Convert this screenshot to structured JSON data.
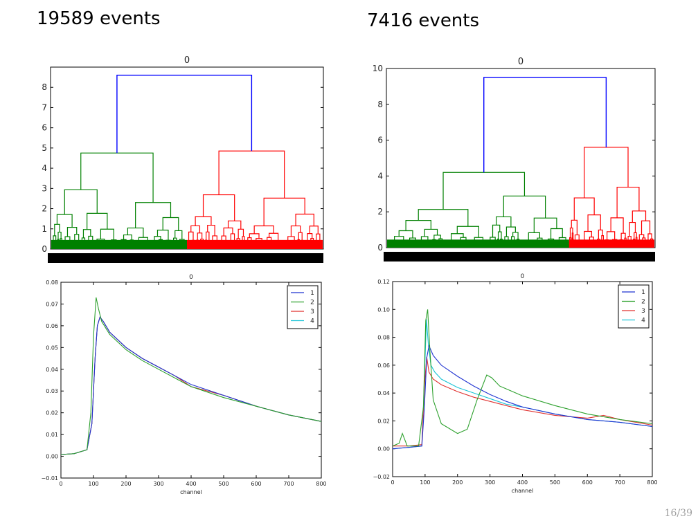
{
  "slide": {
    "left_title": "19589 events",
    "right_title": "7416 events",
    "page_number": "16/39"
  },
  "colors": {
    "cluster_link": "#0000ff",
    "cluster_a": "#008000",
    "cluster_b": "#ff0000",
    "series_1": "#1f33d1",
    "series_2": "#2ca02c",
    "series_3": "#e0312f",
    "series_4": "#19c3d6"
  },
  "chart_data": [
    {
      "id": "dendro-left",
      "type": "dendrogram",
      "title": "0",
      "ylim": [
        0,
        9
      ],
      "yticks": [
        "0",
        "1",
        "2",
        "3",
        "4",
        "5",
        "6",
        "7",
        "8"
      ],
      "root_height": 8.6,
      "left_cluster": {
        "color": "green",
        "height": 4.75,
        "fraction": 0.5
      },
      "right_cluster": {
        "color": "red",
        "height": 4.85,
        "fraction": 0.5
      },
      "xlabel": ""
    },
    {
      "id": "dendro-right",
      "type": "dendrogram",
      "title": "0",
      "ylim": [
        0,
        10
      ],
      "yticks": [
        "0",
        "2",
        "4",
        "6",
        "8",
        "10"
      ],
      "root_height": 9.5,
      "left_cluster": {
        "color": "green",
        "height": 4.2,
        "fraction": 0.68
      },
      "right_cluster": {
        "color": "red",
        "height": 5.6,
        "fraction": 0.32
      },
      "xlabel": ""
    },
    {
      "id": "lines-left",
      "type": "line",
      "title": "0",
      "xlabel": "channel",
      "ylabel": "",
      "xlim": [
        0,
        800
      ],
      "ylim": [
        -0.01,
        0.08
      ],
      "xticks": [
        "0",
        "100",
        "200",
        "300",
        "400",
        "500",
        "600",
        "700",
        "800"
      ],
      "yticks": [
        "−0.01",
        "0.00",
        "0.01",
        "0.02",
        "0.03",
        "0.04",
        "0.05",
        "0.06",
        "0.07",
        "0.08"
      ],
      "legend": [
        "1",
        "2",
        "3",
        "4"
      ],
      "legend_position": "top-right",
      "series": [
        {
          "name": "1",
          "x": [
            0,
            40,
            80,
            95,
            105,
            112,
            120,
            130,
            150,
            200,
            250,
            300,
            350,
            400,
            500,
            600,
            700,
            800
          ],
          "y": [
            0.0008,
            0.0012,
            0.003,
            0.015,
            0.045,
            0.06,
            0.064,
            0.062,
            0.057,
            0.05,
            0.045,
            0.041,
            0.037,
            0.033,
            0.028,
            0.023,
            0.019,
            0.016
          ]
        },
        {
          "name": "2",
          "x": [
            0,
            40,
            80,
            92,
            100,
            108,
            115,
            125,
            150,
            200,
            250,
            300,
            350,
            400,
            500,
            600,
            700,
            800
          ],
          "y": [
            0.0008,
            0.0012,
            0.003,
            0.02,
            0.055,
            0.073,
            0.068,
            0.062,
            0.056,
            0.049,
            0.044,
            0.04,
            0.036,
            0.032,
            0.027,
            0.023,
            0.019,
            0.016
          ]
        },
        {
          "name": "3",
          "x": [
            0,
            40,
            80,
            95,
            105,
            112,
            120,
            130,
            150,
            200,
            250,
            300,
            350,
            400,
            500,
            600,
            700,
            800
          ],
          "y": [
            0.0008,
            0.0012,
            0.003,
            0.015,
            0.045,
            0.06,
            0.064,
            0.062,
            0.057,
            0.05,
            0.045,
            0.041,
            0.037,
            0.032,
            0.028,
            0.023,
            0.019,
            0.016
          ]
        },
        {
          "name": "4",
          "x": [
            0,
            40,
            80,
            95,
            105,
            112,
            120,
            130,
            150,
            200,
            250,
            300,
            350,
            400,
            500,
            600,
            700,
            800
          ],
          "y": [
            0.0008,
            0.0012,
            0.003,
            0.015,
            0.045,
            0.06,
            0.064,
            0.062,
            0.057,
            0.05,
            0.045,
            0.041,
            0.037,
            0.032,
            0.028,
            0.023,
            0.019,
            0.016
          ]
        }
      ]
    },
    {
      "id": "lines-right",
      "type": "line",
      "title": "0",
      "xlabel": "channel",
      "ylabel": "",
      "xlim": [
        0,
        800
      ],
      "ylim": [
        -0.02,
        0.12
      ],
      "xticks": [
        "0",
        "100",
        "200",
        "300",
        "400",
        "500",
        "600",
        "700",
        "800"
      ],
      "yticks": [
        "−0.02",
        "0.00",
        "0.02",
        "0.04",
        "0.06",
        "0.08",
        "0.10",
        "0.12"
      ],
      "legend": [
        "1",
        "2",
        "3",
        "4"
      ],
      "legend_position": "top-right",
      "series": [
        {
          "name": "1",
          "x": [
            0,
            50,
            90,
            98,
            105,
            112,
            125,
            150,
            200,
            250,
            300,
            350,
            400,
            500,
            600,
            700,
            800
          ],
          "y": [
            0.0,
            0.001,
            0.002,
            0.03,
            0.065,
            0.074,
            0.067,
            0.06,
            0.052,
            0.045,
            0.039,
            0.034,
            0.03,
            0.025,
            0.021,
            0.019,
            0.016
          ]
        },
        {
          "name": "2",
          "x": [
            0,
            20,
            30,
            45,
            80,
            95,
            102,
            108,
            115,
            125,
            150,
            200,
            230,
            260,
            290,
            305,
            330,
            350,
            370,
            400,
            500,
            600,
            700,
            800
          ],
          "y": [
            0.002,
            0.004,
            0.011,
            0.002,
            0.002,
            0.03,
            0.092,
            0.1,
            0.07,
            0.035,
            0.018,
            0.011,
            0.014,
            0.035,
            0.053,
            0.051,
            0.045,
            0.043,
            0.041,
            0.038,
            0.031,
            0.025,
            0.021,
            0.018
          ]
        },
        {
          "name": "3",
          "x": [
            0,
            50,
            90,
            98,
            105,
            112,
            125,
            150,
            200,
            250,
            300,
            350,
            400,
            500,
            600,
            650,
            700,
            800
          ],
          "y": [
            0.002,
            0.002,
            0.003,
            0.045,
            0.066,
            0.055,
            0.05,
            0.046,
            0.041,
            0.037,
            0.034,
            0.031,
            0.028,
            0.024,
            0.022,
            0.024,
            0.021,
            0.017
          ]
        },
        {
          "name": "4",
          "x": [
            0,
            50,
            90,
            98,
            104,
            110,
            118,
            130,
            150,
            200,
            250,
            300,
            350,
            400,
            500,
            600,
            700,
            800
          ],
          "y": [
            0.0,
            0.001,
            0.002,
            0.05,
            0.093,
            0.075,
            0.06,
            0.055,
            0.05,
            0.044,
            0.04,
            0.036,
            0.032,
            0.03,
            0.025,
            0.021,
            0.019,
            0.016
          ]
        }
      ]
    }
  ]
}
